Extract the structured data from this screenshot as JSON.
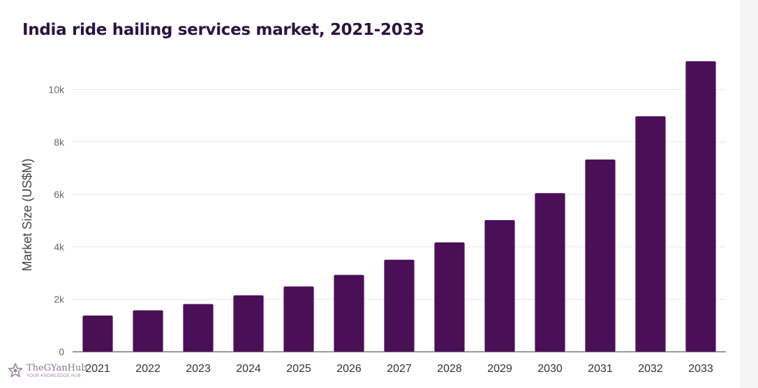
{
  "watermark": {
    "name": "TheGYanHub",
    "tagline": "YOUR KNOWLEDGE HUB",
    "icon": "star-logo-icon"
  },
  "chart_data": {
    "type": "bar",
    "title": "India ride hailing services market, 2021-2033",
    "xlabel": "",
    "ylabel": "Market Size (US$M)",
    "categories": [
      "2021",
      "2022",
      "2023",
      "2024",
      "2025",
      "2026",
      "2027",
      "2028",
      "2029",
      "2030",
      "2031",
      "2032",
      "2033"
    ],
    "values": [
      1380,
      1580,
      1820,
      2150,
      2490,
      2930,
      3510,
      4170,
      5020,
      6050,
      7330,
      8980,
      11080
    ],
    "ylim": [
      0,
      11500
    ],
    "yticks": [
      0,
      2000,
      4000,
      6000,
      8000,
      10000
    ],
    "ytick_labels": [
      "0",
      "2k",
      "4k",
      "6k",
      "8k",
      "10k"
    ],
    "grid": true,
    "legend": "none",
    "colors": {
      "bar": "#4b0f57",
      "grid": "#e6e6e6",
      "axis": "#333333",
      "tick_text": "#666666",
      "title": "#2c1240"
    }
  }
}
